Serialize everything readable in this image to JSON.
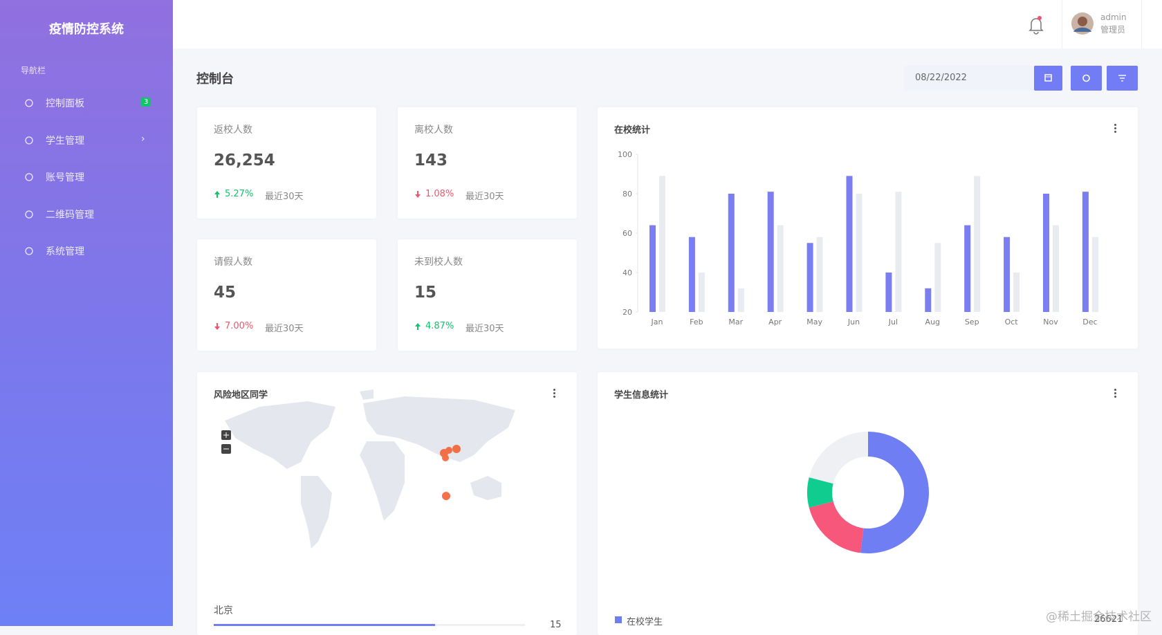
{
  "sidebar": {
    "title": "疫情防控系统",
    "section": "导航栏",
    "menu": [
      {
        "label": "控制面板",
        "badge": 3
      },
      {
        "label": "学生管理"
      },
      {
        "label": "账号管理"
      },
      {
        "label": "二维码管理"
      },
      {
        "label": "系统管理"
      }
    ]
  },
  "header": {
    "user": "admin",
    "role": "管理员"
  },
  "page": {
    "title": "控制台",
    "date": "08/22/2022"
  },
  "stats": [
    {
      "title": "返校人数",
      "value": "26,254",
      "change": "5.27%",
      "trend": "up",
      "period": "最近30天"
    },
    {
      "title": "离校人数",
      "value": "143",
      "change": "1.08%",
      "trend": "down",
      "period": "最近30天"
    },
    {
      "title": "请假人数",
      "value": "45",
      "change": "7.00%",
      "trend": "down",
      "period": "最近30天"
    },
    {
      "title": "未到校人数",
      "value": "15",
      "change": "4.87%",
      "trend": "up",
      "period": "最近30天"
    }
  ],
  "bar_chart": {
    "type": "bar",
    "title": "在校统计",
    "categories": [
      "Jan",
      "Feb",
      "Mar",
      "Apr",
      "May",
      "Jun",
      "Jul",
      "Aug",
      "Sep",
      "Oct",
      "Nov",
      "Dec"
    ],
    "series": [
      {
        "color": "#7a7ef0",
        "values": [
          64,
          58,
          80,
          81,
          55,
          89,
          40,
          32,
          64,
          58,
          80,
          81
        ]
      },
      {
        "color": "#e8ebef",
        "values": [
          89,
          40,
          32,
          64,
          58,
          80,
          81,
          55,
          89,
          40,
          64,
          58
        ]
      }
    ],
    "ylim": [
      20,
      100
    ],
    "yticks": [
      20,
      40,
      60,
      80,
      100
    ]
  },
  "map": {
    "title": "风险地区同学",
    "region": "北京",
    "count": 15
  },
  "donut": {
    "type": "pie",
    "title": "学生信息统计",
    "values": [
      52,
      19,
      8,
      21
    ],
    "colors": [
      "#6f7ff3",
      "#f7577a",
      "#10cc8f",
      "#eef0f3"
    ],
    "legend": {
      "name": "在校学生",
      "value": 26621
    }
  },
  "watermark": "@稀土掘金技术社区"
}
